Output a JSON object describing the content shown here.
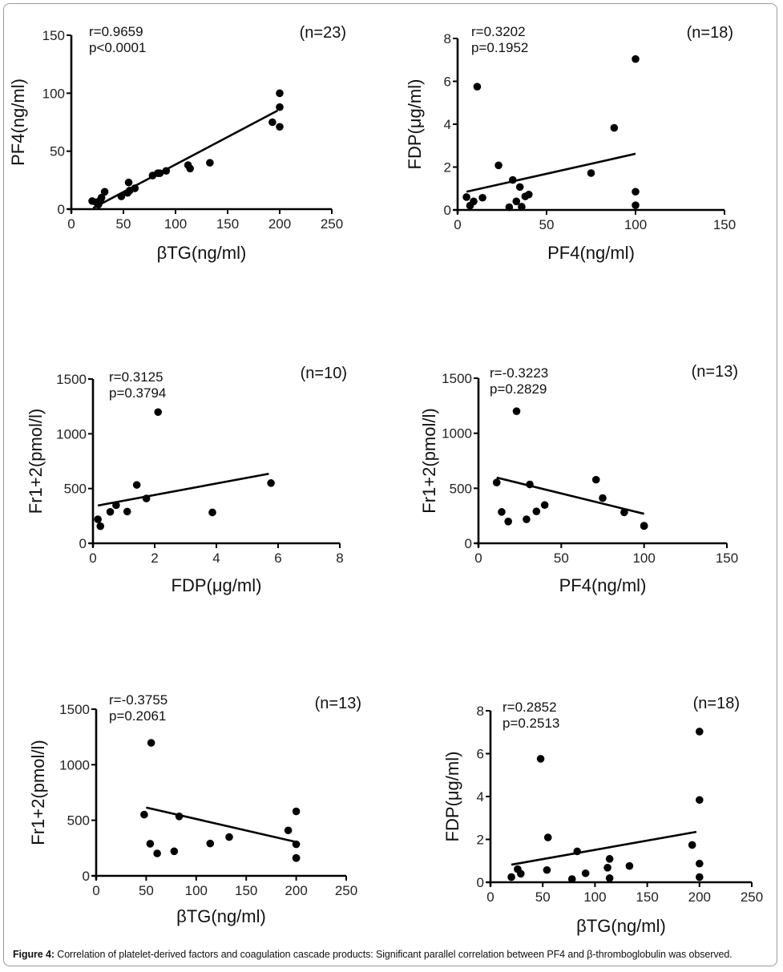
{
  "figure": {
    "caption_label": "Figure 4:",
    "caption_text": " Correlation of platelet-derived factors and coagulation cascade products: Significant parallel correlation between PF4 and β-thrombоglobulin was observed."
  },
  "chart_data": [
    {
      "type": "scatter",
      "xlabel": "βTG(ng/ml)",
      "ylabel": "PF4(ng/ml)",
      "xlim": [
        0,
        250
      ],
      "ylim": [
        0,
        150
      ],
      "xticks": [
        0,
        50,
        100,
        150,
        200,
        250
      ],
      "yticks": [
        0,
        50,
        100,
        150
      ],
      "stats": [
        "r=0.9659",
        "p<0.0001"
      ],
      "n_label": "(n=23)",
      "points": [
        [
          20,
          7
        ],
        [
          25,
          5
        ],
        [
          26,
          4
        ],
        [
          28,
          8
        ],
        [
          29,
          10
        ],
        [
          32,
          15
        ],
        [
          48,
          11
        ],
        [
          54,
          14
        ],
        [
          55,
          23
        ],
        [
          56,
          16
        ],
        [
          61,
          18
        ],
        [
          78,
          29
        ],
        [
          83,
          31
        ],
        [
          85,
          31
        ],
        [
          91,
          33
        ],
        [
          112,
          38
        ],
        [
          114,
          35
        ],
        [
          133,
          40
        ],
        [
          193,
          75
        ],
        [
          200,
          100
        ],
        [
          200,
          88
        ],
        [
          200,
          71
        ],
        [
          24,
          6
        ]
      ],
      "regression": [
        [
          21,
          1
        ],
        [
          198,
          85
        ]
      ],
      "grid": false
    },
    {
      "type": "scatter",
      "xlabel": "PF4(ng/ml)",
      "ylabel": "FDP(μg/ml)",
      "xlim": [
        0,
        150
      ],
      "ylim": [
        0,
        8
      ],
      "xticks": [
        0,
        50,
        100,
        150
      ],
      "yticks": [
        0,
        2,
        4,
        6,
        8
      ],
      "stats": [
        "r=0.3202",
        "p=0.1952"
      ],
      "n_label": "(n=18)",
      "points": [
        [
          5,
          0.6
        ],
        [
          9,
          0.4
        ],
        [
          7,
          0.2
        ],
        [
          11,
          5.75
        ],
        [
          14,
          0.57
        ],
        [
          23,
          2.08
        ],
        [
          29,
          0.13
        ],
        [
          31,
          1.4
        ],
        [
          33,
          0.4
        ],
        [
          35,
          1.07
        ],
        [
          36,
          0.15
        ],
        [
          38,
          0.63
        ],
        [
          40,
          0.72
        ],
        [
          75,
          1.72
        ],
        [
          88,
          3.83
        ],
        [
          100,
          7.04
        ],
        [
          100,
          0.85
        ],
        [
          100,
          0.22
        ]
      ],
      "regression": [
        [
          5,
          0.85
        ],
        [
          100,
          2.62
        ]
      ],
      "grid": false
    },
    {
      "type": "scatter",
      "xlabel": "FDP(μg/ml)",
      "ylabel": "Fr1+2(pmol/l)",
      "xlim": [
        0,
        8
      ],
      "ylim": [
        0,
        1500
      ],
      "xticks": [
        0,
        2,
        4,
        6,
        8
      ],
      "yticks": [
        0,
        500,
        1000,
        1500
      ],
      "stats": [
        "r=0.3125",
        "p=0.3794"
      ],
      "n_label": "(n=10)",
      "points": [
        [
          0.16,
          219
        ],
        [
          0.24,
          156
        ],
        [
          0.56,
          287
        ],
        [
          0.75,
          348
        ],
        [
          1.11,
          290
        ],
        [
          1.42,
          533
        ],
        [
          1.73,
          409
        ],
        [
          2.11,
          1198
        ],
        [
          3.87,
          282
        ],
        [
          5.77,
          550
        ]
      ],
      "regression": [
        [
          0.16,
          345
        ],
        [
          5.7,
          635
        ]
      ],
      "grid": false
    },
    {
      "type": "scatter",
      "xlabel": "PF4(ng/ml)",
      "ylabel": "Fr1+2(pmol/l)",
      "xlim": [
        0,
        150
      ],
      "ylim": [
        0,
        1500
      ],
      "xticks": [
        0,
        50,
        100,
        150
      ],
      "yticks": [
        0,
        500,
        1000,
        1500
      ],
      "stats": [
        "r=-0.3223",
        "p=0.2829"
      ],
      "n_label": "(n=13)",
      "points": [
        [
          11,
          552
        ],
        [
          14,
          285
        ],
        [
          18,
          198
        ],
        [
          23,
          1200
        ],
        [
          29,
          218
        ],
        [
          31,
          535
        ],
        [
          35,
          290
        ],
        [
          40,
          348
        ],
        [
          71,
          578
        ],
        [
          75,
          411
        ],
        [
          88,
          281
        ],
        [
          100,
          157
        ],
        [
          100,
          160
        ]
      ],
      "regression": [
        [
          11,
          597
        ],
        [
          100,
          268
        ]
      ],
      "grid": false
    },
    {
      "type": "scatter",
      "xlabel": "βTG(ng/ml)",
      "ylabel": "Fr1+2(pmol/l)",
      "xlim": [
        0,
        250
      ],
      "ylim": [
        0,
        1500
      ],
      "xticks": [
        0,
        50,
        100,
        150,
        200,
        250
      ],
      "yticks": [
        0,
        500,
        1000,
        1500
      ],
      "stats": [
        "r=-0.3755",
        "p=0.2061"
      ],
      "n_label": "(n=13)",
      "points": [
        [
          48,
          551
        ],
        [
          55,
          1197
        ],
        [
          54,
          289
        ],
        [
          61,
          202
        ],
        [
          78,
          221
        ],
        [
          83,
          535
        ],
        [
          114,
          291
        ],
        [
          133,
          349
        ],
        [
          192,
          409
        ],
        [
          200,
          580
        ],
        [
          200,
          284
        ],
        [
          200,
          161
        ],
        [
          200,
          160
        ]
      ],
      "regression": [
        [
          50,
          615
        ],
        [
          200,
          305
        ]
      ],
      "grid": false
    },
    {
      "type": "scatter",
      "xlabel": "βTG(ng/ml)",
      "ylabel": "FDP(μg/ml)",
      "xlim": [
        0,
        250
      ],
      "ylim": [
        0,
        8
      ],
      "xticks": [
        0,
        50,
        100,
        150,
        200,
        250
      ],
      "yticks": [
        0,
        2,
        4,
        6,
        8
      ],
      "stats": [
        "r=0.2852",
        "p=0.2513"
      ],
      "n_label": "(n=18)",
      "points": [
        [
          20,
          0.24
        ],
        [
          26,
          0.61
        ],
        [
          29,
          0.4
        ],
        [
          48,
          5.76
        ],
        [
          54,
          0.57
        ],
        [
          55,
          2.09
        ],
        [
          78,
          0.15
        ],
        [
          83,
          1.44
        ],
        [
          91,
          0.42
        ],
        [
          112,
          0.68
        ],
        [
          114,
          1.09
        ],
        [
          114,
          0.19
        ],
        [
          133,
          0.76
        ],
        [
          193,
          1.74
        ],
        [
          200,
          7.03
        ],
        [
          200,
          3.84
        ],
        [
          200,
          0.87
        ],
        [
          200,
          0.24
        ]
      ],
      "regression": [
        [
          20,
          0.82
        ],
        [
          197,
          2.35
        ]
      ],
      "grid": false
    }
  ]
}
